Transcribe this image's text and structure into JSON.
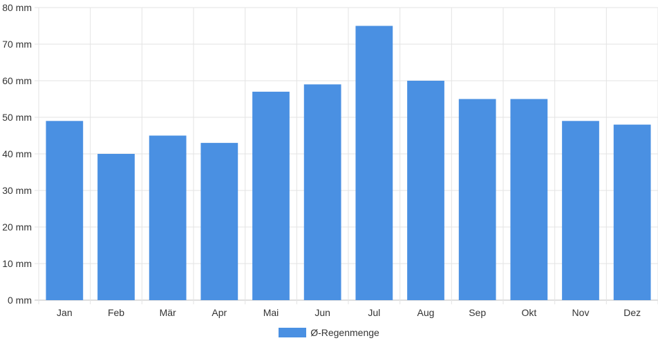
{
  "chart_data": {
    "type": "bar",
    "categories": [
      "Jan",
      "Feb",
      "Mär",
      "Apr",
      "Mai",
      "Jun",
      "Jul",
      "Aug",
      "Sep",
      "Okt",
      "Nov",
      "Dez"
    ],
    "series": [
      {
        "name": "Ø-Regenmenge",
        "values": [
          49,
          40,
          45,
          43,
          57,
          59,
          75,
          60,
          55,
          55,
          49,
          48
        ],
        "color": "#4a90e2"
      }
    ],
    "y_ticks": [
      "0 mm",
      "10 mm",
      "20 mm",
      "30 mm",
      "40 mm",
      "50 mm",
      "60 mm",
      "70 mm",
      "80 mm"
    ],
    "ylim": [
      0,
      80
    ],
    "unit": "mm",
    "grid": true,
    "legend_position": "bottom"
  }
}
